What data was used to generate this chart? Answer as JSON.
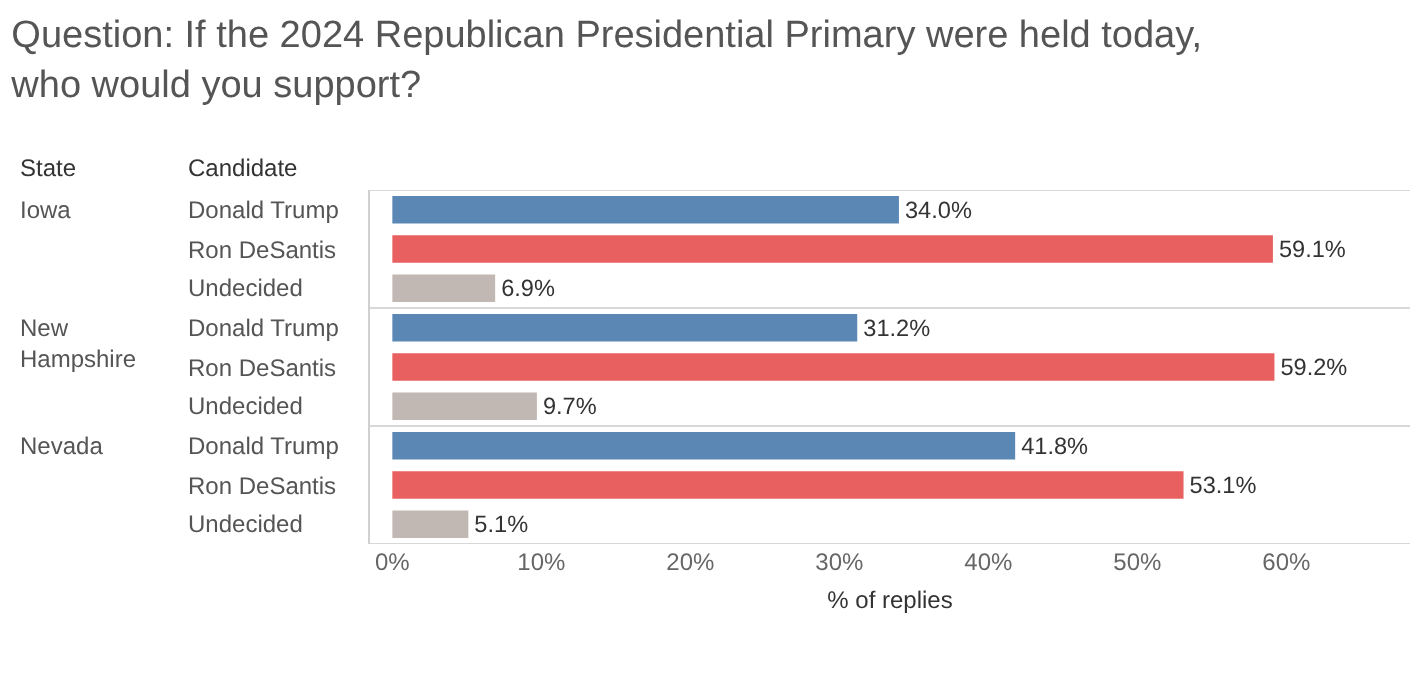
{
  "chart_data": {
    "type": "bar",
    "orientation": "horizontal",
    "title": "Question: If the 2024 Republican Presidential Primary were held today,\nwho would you support?",
    "xlabel": "% of replies",
    "ylabel": "Candidate",
    "y2label": "State",
    "categories": [
      "Donald Trump",
      "Ron DeSantis",
      "Undecided",
      "Donald Trump",
      "Ron DeSantis",
      "Undecided",
      "Donald Trump",
      "Ron DeSantis",
      "Undecided"
    ],
    "y2_categories": [
      "Iowa",
      null,
      null,
      "New\nHampshire",
      null,
      null,
      "Nevada",
      null,
      null
    ],
    "values": [
      34.0,
      59.1,
      6.9,
      31.2,
      59.2,
      9.7,
      41.8,
      53.1,
      5.1
    ],
    "value_labels": [
      "34.0%",
      "59.1%",
      "6.9%",
      "31.2%",
      "59.2%",
      "9.7%",
      "41.8%",
      "53.1%",
      "5.1%"
    ],
    "colors": [
      "#5b87b4",
      "#e8605f",
      "#c2b8b3",
      "#5b87b4",
      "#e8605f",
      "#c2b8b3",
      "#5b87b4",
      "#e8605f",
      "#c2b8b3"
    ],
    "xlim": [
      -1.5,
      68.3
    ],
    "xticks": [
      {
        "value": 0,
        "label": "0%"
      },
      {
        "value": 10,
        "label": "10%"
      },
      {
        "value": 20,
        "label": "20%"
      },
      {
        "value": 30,
        "label": "30%"
      },
      {
        "value": 40,
        "label": "40%"
      },
      {
        "value": 50,
        "label": "50%"
      },
      {
        "value": 60,
        "label": "60%"
      }
    ],
    "tick_labels": "x"
  }
}
